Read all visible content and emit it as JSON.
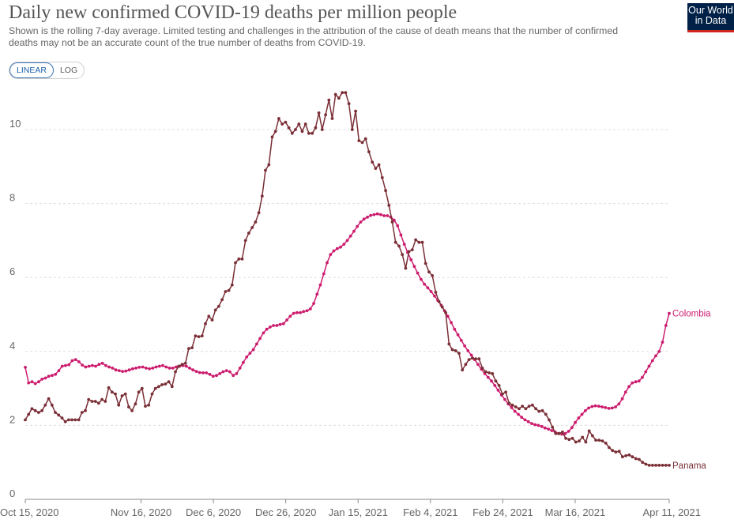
{
  "header": {
    "title": "Daily new confirmed COVID-19 deaths per million people",
    "subtitle": "Shown is the rolling 7-day average. Limited testing and challenges in the attribution of the cause of death means that the number of confirmed deaths may not be an accurate count of the true number of deaths from COVID-19.",
    "logo_line1": "Our World",
    "logo_line2": "in Data"
  },
  "scale_toggle": {
    "linear_label": "LINEAR",
    "log_label": "LOG",
    "selected": "LINEAR"
  },
  "colors": {
    "colombia": "#cc1c6e",
    "panama": "#7a2f36",
    "grid": "#dddddd",
    "axis": "#555555"
  },
  "chart_data": {
    "type": "line",
    "title": "Daily new confirmed COVID-19 deaths per million people",
    "ylim": [
      0,
      11.2
    ],
    "yticks": [
      0,
      2,
      4,
      6,
      8,
      10
    ],
    "x_start": "2020-10-15",
    "x_end": "2021-04-11",
    "xticks": [
      "Oct 15, 2020",
      "Nov 16, 2020",
      "Dec 6, 2020",
      "Dec 26, 2020",
      "Jan 15, 2021",
      "Feb 4, 2021",
      "Feb 24, 2021",
      "Mar 16, 2021",
      "Apr 11, 2021"
    ],
    "grid": "horizontal dashed",
    "series": [
      {
        "name": "Colombia",
        "values": [
          3.57,
          3.15,
          3.18,
          3.13,
          3.18,
          3.25,
          3.28,
          3.33,
          3.35,
          3.38,
          3.48,
          3.6,
          3.62,
          3.64,
          3.75,
          3.78,
          3.72,
          3.63,
          3.58,
          3.6,
          3.62,
          3.6,
          3.65,
          3.68,
          3.62,
          3.58,
          3.55,
          3.5,
          3.48,
          3.46,
          3.47,
          3.5,
          3.53,
          3.55,
          3.57,
          3.58,
          3.55,
          3.53,
          3.55,
          3.58,
          3.6,
          3.62,
          3.58,
          3.55,
          3.55,
          3.58,
          3.6,
          3.62,
          3.6,
          3.55,
          3.5,
          3.46,
          3.43,
          3.42,
          3.42,
          3.38,
          3.33,
          3.35,
          3.4,
          3.45,
          3.48,
          3.45,
          3.35,
          3.4,
          3.55,
          3.7,
          3.85,
          3.95,
          4.05,
          4.2,
          4.35,
          4.5,
          4.6,
          4.66,
          4.7,
          4.7,
          4.73,
          4.75,
          4.85,
          4.95,
          5.03,
          5.05,
          5.05,
          5.08,
          5.1,
          5.15,
          5.3,
          5.55,
          5.8,
          6.1,
          6.4,
          6.62,
          6.72,
          6.78,
          6.82,
          6.9,
          7.0,
          7.12,
          7.25,
          7.38,
          7.5,
          7.58,
          7.63,
          7.68,
          7.7,
          7.72,
          7.7,
          7.67,
          7.67,
          7.63,
          7.55,
          7.4,
          7.15,
          6.9,
          6.68,
          6.48,
          6.3,
          6.12,
          5.95,
          5.82,
          5.72,
          5.62,
          5.5,
          5.38,
          5.25,
          5.1,
          4.95,
          4.78,
          4.6,
          4.45,
          4.3,
          4.15,
          4.02,
          3.9,
          3.78,
          3.65,
          3.52,
          3.4,
          3.3,
          3.2,
          3.08,
          2.95,
          2.82,
          2.7,
          2.58,
          2.48,
          2.38,
          2.3,
          2.22,
          2.15,
          2.1,
          2.05,
          2.02,
          2.0,
          1.97,
          1.93,
          1.9,
          1.86,
          1.82,
          1.78,
          1.76,
          1.78,
          1.84,
          1.94,
          2.08,
          2.2,
          2.3,
          2.4,
          2.47,
          2.51,
          2.53,
          2.52,
          2.5,
          2.48,
          2.46,
          2.47,
          2.5,
          2.58,
          2.72,
          2.9,
          3.05,
          3.15,
          3.18,
          3.2,
          3.3,
          3.45,
          3.6,
          3.75,
          3.88,
          4.0,
          4.25,
          4.7,
          5.03
        ]
      },
      {
        "name": "Panama",
        "values": [
          2.15,
          2.3,
          2.45,
          2.4,
          2.35,
          2.4,
          2.55,
          2.72,
          2.55,
          2.35,
          2.28,
          2.2,
          2.1,
          2.15,
          2.15,
          2.15,
          2.15,
          2.35,
          2.4,
          2.7,
          2.65,
          2.65,
          2.6,
          2.7,
          2.65,
          3.02,
          2.9,
          2.85,
          2.55,
          2.8,
          2.85,
          2.5,
          2.4,
          2.58,
          2.9,
          3.0,
          2.52,
          2.55,
          2.85,
          3.0,
          3.05,
          3.1,
          3.12,
          3.18,
          3.05,
          3.45,
          3.6,
          3.65,
          3.68,
          4.08,
          4.1,
          4.42,
          4.4,
          4.42,
          4.75,
          4.95,
          4.85,
          5.12,
          5.22,
          5.4,
          5.62,
          5.65,
          5.8,
          6.4,
          6.5,
          6.5,
          7.0,
          7.2,
          7.35,
          7.5,
          7.75,
          8.2,
          8.9,
          9.05,
          9.8,
          9.95,
          10.3,
          10.15,
          10.2,
          10.05,
          9.9,
          10.0,
          10.15,
          9.95,
          10.15,
          9.9,
          9.9,
          10.05,
          10.45,
          10.0,
          10.4,
          10.8,
          10.3,
          10.95,
          10.85,
          11.0,
          11.0,
          10.7,
          10.0,
          10.5,
          9.7,
          9.65,
          9.75,
          9.4,
          9.12,
          8.95,
          9.05,
          8.7,
          8.35,
          7.95,
          7.5,
          6.95,
          6.85,
          6.62,
          6.25,
          6.7,
          6.75,
          7.02,
          6.95,
          6.95,
          6.38,
          6.15,
          6.05,
          5.6,
          5.35,
          5.2,
          5.05,
          4.2,
          4.05,
          4.02,
          3.95,
          3.5,
          3.65,
          3.78,
          3.82,
          3.8,
          3.8,
          3.55,
          3.45,
          3.42,
          3.4,
          3.2,
          3.08,
          2.85,
          2.9,
          2.6,
          2.55,
          2.5,
          2.45,
          2.52,
          2.45,
          2.52,
          2.55,
          2.45,
          2.38,
          2.4,
          2.3,
          2.15,
          1.95,
          1.78,
          1.78,
          1.82,
          1.65,
          1.62,
          1.65,
          1.55,
          1.58,
          1.68,
          1.55,
          1.85,
          1.72,
          1.6,
          1.6,
          1.58,
          1.52,
          1.4,
          1.32,
          1.28,
          1.3,
          1.15,
          1.18,
          1.2,
          1.15,
          1.1,
          1.08,
          1.0,
          0.95,
          0.92,
          0.92,
          0.92,
          0.92,
          0.92,
          0.92,
          0.92
        ]
      }
    ]
  }
}
